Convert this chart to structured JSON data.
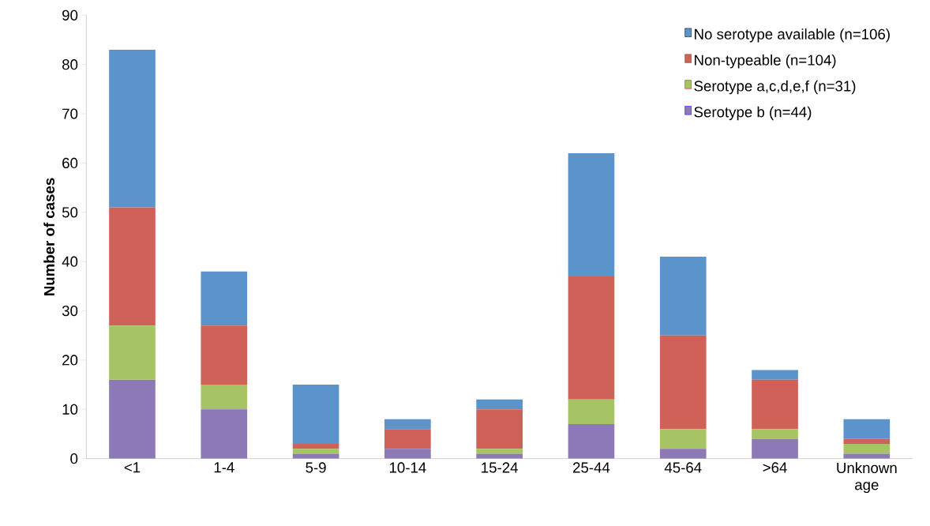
{
  "chart_data": {
    "type": "bar",
    "stacked": true,
    "ylabel": "Number of cases",
    "categories": [
      "<1",
      "1-4",
      "5-9",
      "10-14",
      "15-24",
      "25-44",
      "45-64",
      ">64",
      "Unknown age"
    ],
    "series": [
      {
        "name": "Serotype b (n=44)",
        "color": "#8d79b5",
        "values": [
          16,
          10,
          1,
          2,
          1,
          7,
          2,
          4,
          1
        ]
      },
      {
        "name": "Serotype a,c,d,e,f (n=31)",
        "color": "#a6c463",
        "values": [
          11,
          5,
          1,
          0,
          1,
          5,
          4,
          2,
          2
        ]
      },
      {
        "name": "Non-typeable (n=104)",
        "color": "#cf6158",
        "values": [
          24,
          12,
          1,
          4,
          8,
          25,
          19,
          10,
          1
        ]
      },
      {
        "name": "No serotype available (n=106)",
        "color": "#5b93cb",
        "values": [
          32,
          11,
          12,
          2,
          2,
          25,
          16,
          2,
          4
        ]
      }
    ],
    "ylim": [
      0,
      90
    ],
    "yticks": [
      0,
      10,
      20,
      30,
      40,
      50,
      60,
      70,
      80,
      90
    ],
    "legend": "top right",
    "grid": false
  }
}
